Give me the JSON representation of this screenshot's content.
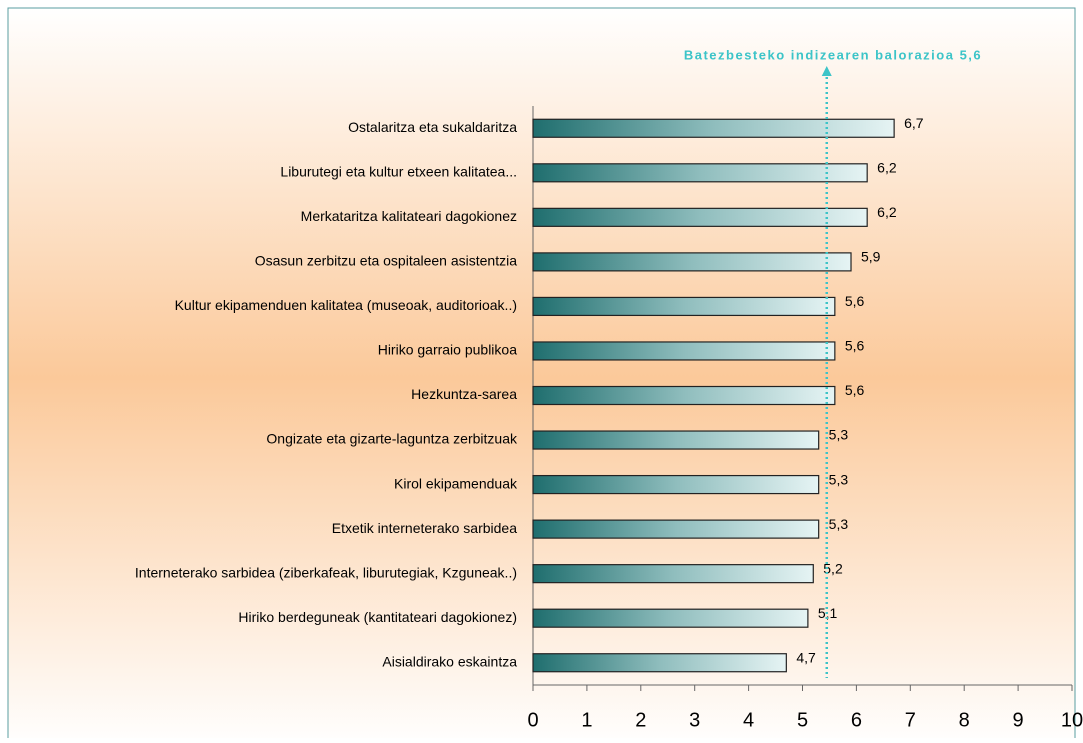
{
  "chart_data": {
    "type": "barh",
    "annotation": "Batezbesteko indizearen balorazioa 5,6",
    "reference_line": 5.45,
    "categories": [
      "Ostalaritza eta sukaldaritza",
      "Liburutegi eta kultur etxeen kalitatea...",
      "Merkataritza kalitateari dagokionez",
      "Osasun zerbitzu eta ospitaleen asistentzia",
      "Kultur ekipamenduen kalitatea (museoak, auditorioak..)",
      "Hiriko garraio publikoa",
      "Hezkuntza-sarea",
      "Ongizate eta gizarte-laguntza zerbitzuak",
      "Kirol ekipamenduak",
      "Etxetik interneterako sarbidea",
      "Interneterako sarbidea (ziberkafeak, liburutegiak, Kzguneak..)",
      "Hiriko berdeguneak (kantitateari dagokionez)",
      "Aisialdirako eskaintza"
    ],
    "values": [
      6.7,
      6.2,
      6.2,
      5.9,
      5.6,
      5.6,
      5.6,
      5.3,
      5.3,
      5.3,
      5.2,
      5.1,
      4.7
    ],
    "value_labels": [
      "6,7",
      "6,2",
      "6,2",
      "5,9",
      "5,6",
      "5,6",
      "5,6",
      "5,3",
      "5,3",
      "5,3",
      "5,2",
      "5,1",
      "4,7"
    ],
    "color": "#1f6e6e",
    "xlim": [
      0,
      10
    ],
    "xticks": [
      0,
      1,
      2,
      3,
      4,
      5,
      6,
      7,
      8,
      9,
      10
    ]
  }
}
